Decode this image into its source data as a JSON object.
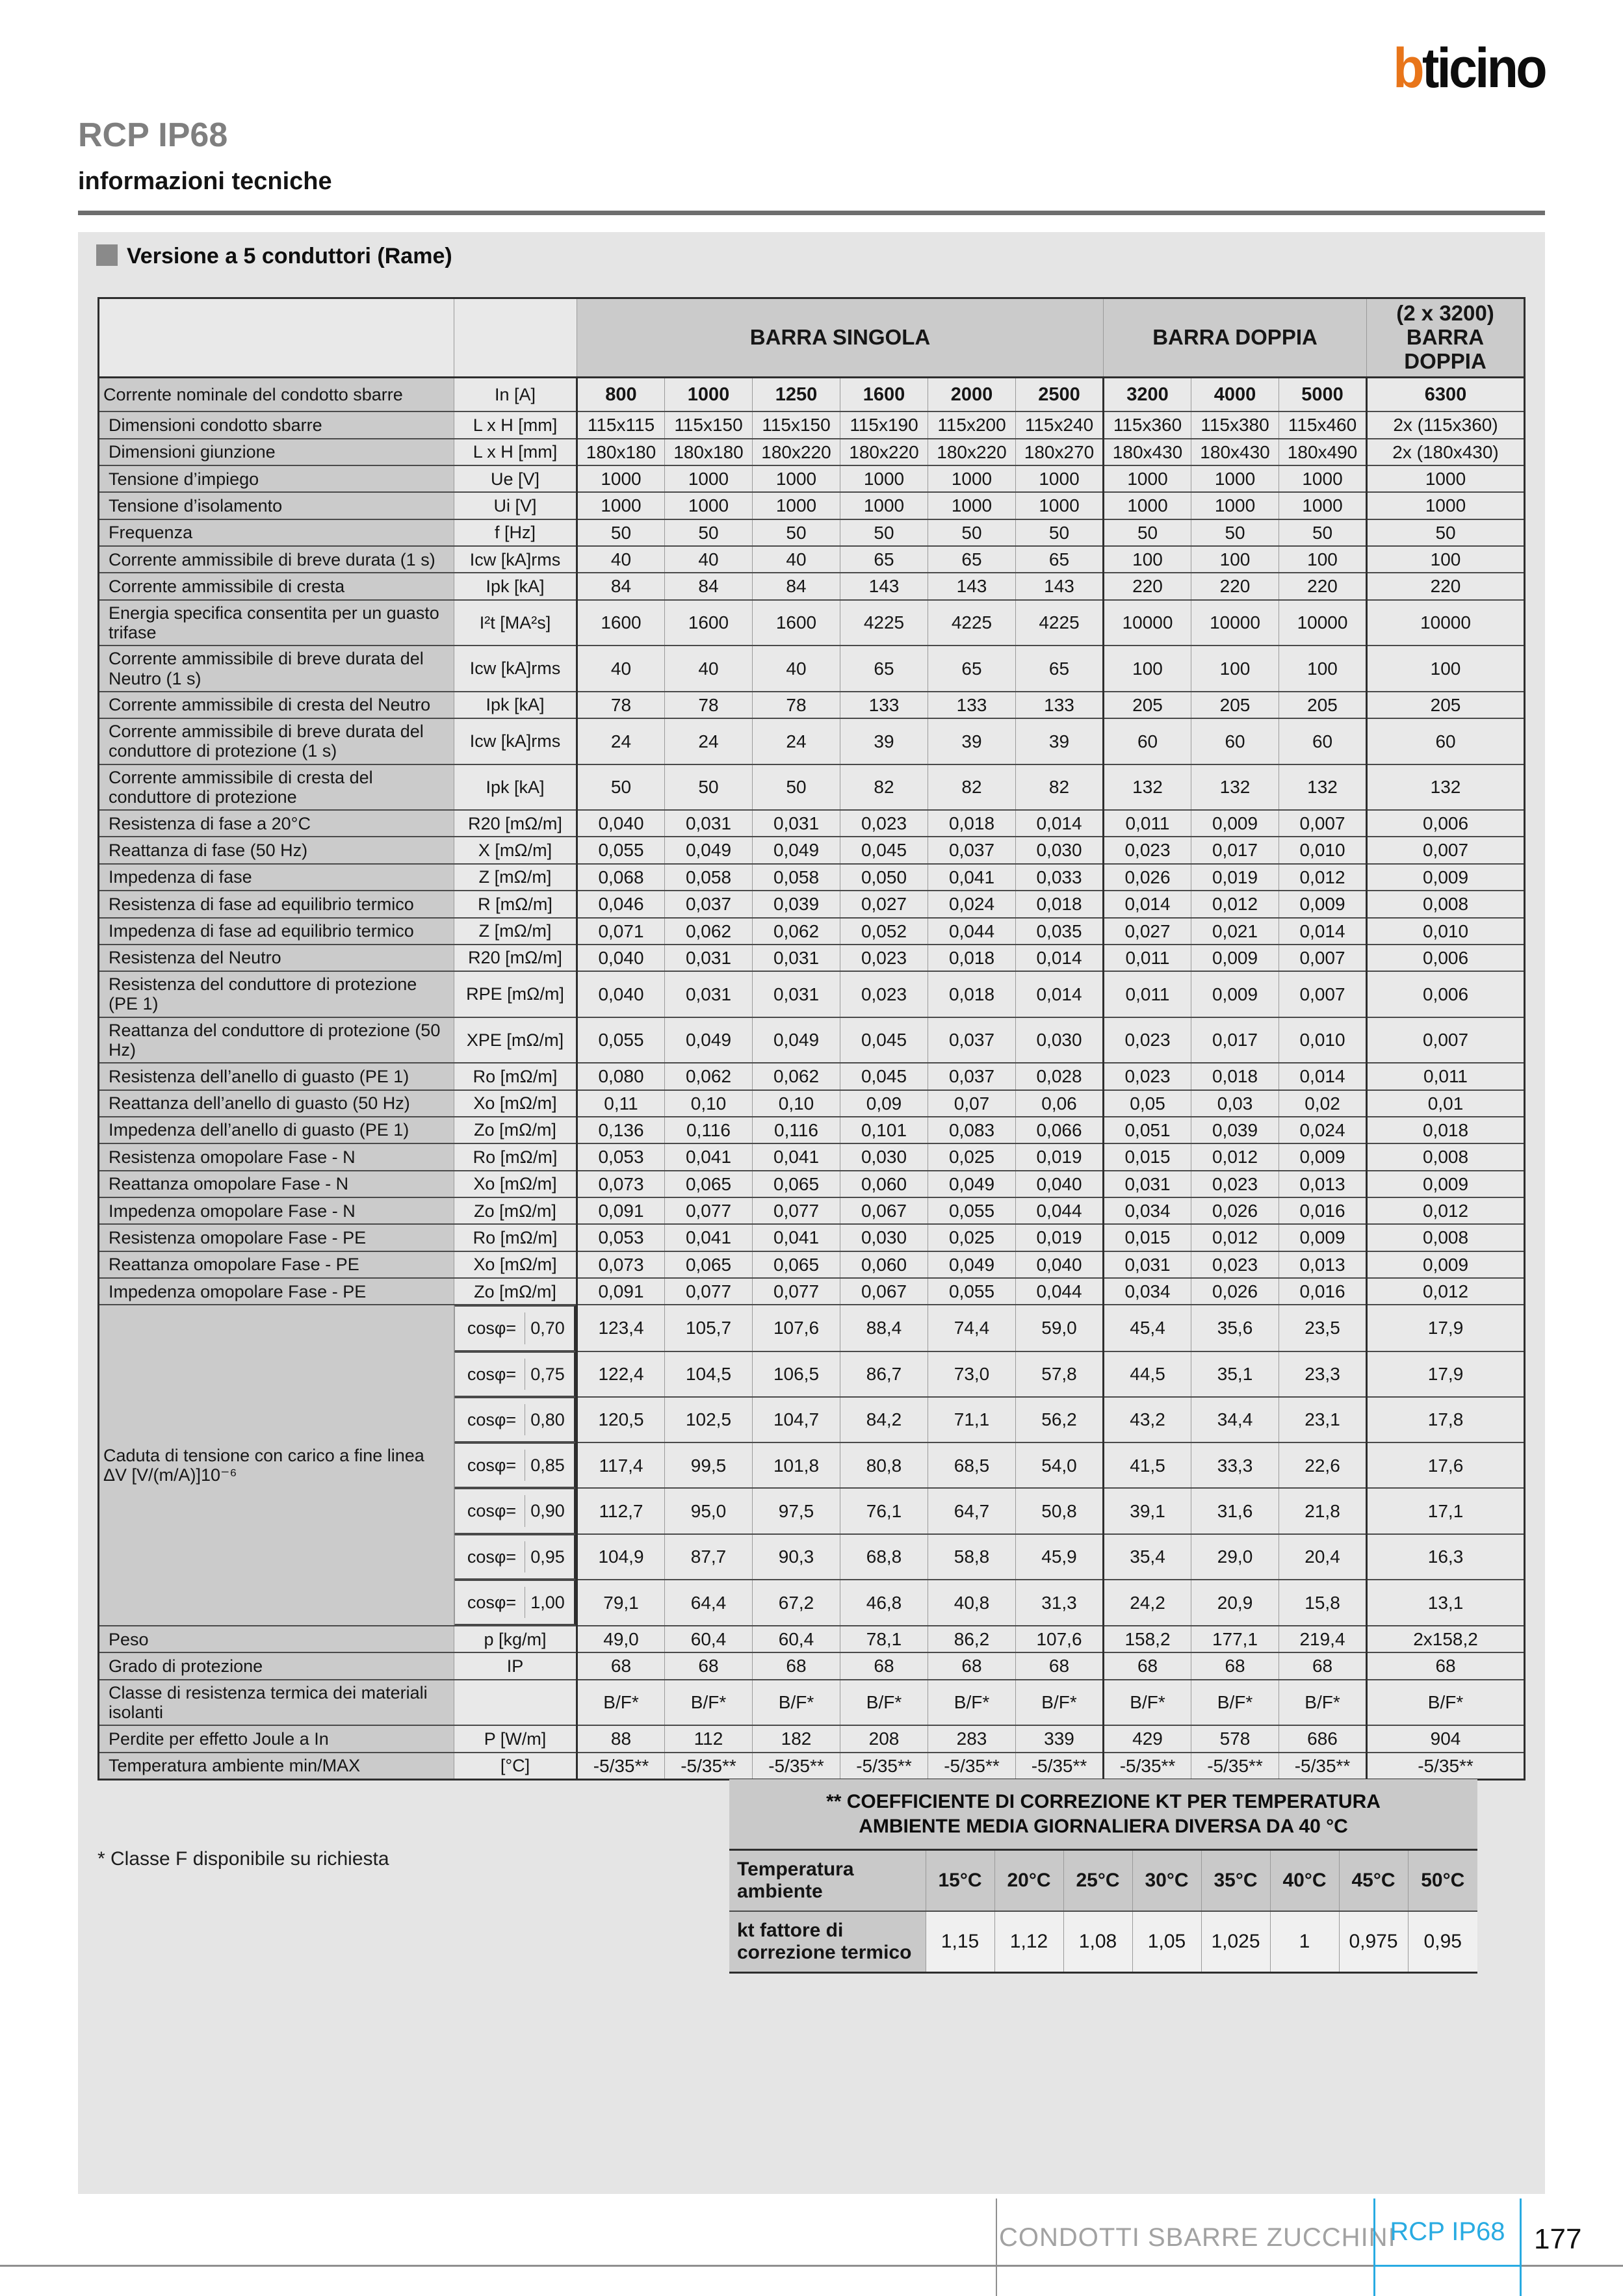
{
  "page": {
    "logo_b": "b",
    "logo_rest": "ticino",
    "title": "RCP IP68",
    "subtitle": "informazioni tecniche",
    "colors": {
      "orange": "#e8751a",
      "blue": "#29abe2",
      "title_gray": "#7f7f7f"
    }
  },
  "section": {
    "title": "Versione a 5 conduttori (Rame)",
    "footnote": "* Classe F disponibile su richiesta"
  },
  "main_table": {
    "cos_label": "cosφ=",
    "group_headers": [
      {
        "label": "",
        "span": 1
      },
      {
        "label": "",
        "span": 1
      },
      {
        "label": "BARRA SINGOLA",
        "span": 6
      },
      {
        "label": "BARRA DOPPIA",
        "span": 3
      },
      {
        "label": "(2 x 3200)\nBARRA DOPPIA",
        "span": 1
      }
    ],
    "rows": [
      {
        "label": "Corrente nominale del condotto sbarre",
        "unit": "In [A]",
        "bold": true,
        "values": [
          "800",
          "1000",
          "1250",
          "1600",
          "2000",
          "2500",
          "3200",
          "4000",
          "5000",
          "6300"
        ]
      },
      {
        "label": "Dimensioni condotto sbarre",
        "unit": "L x H [mm]",
        "values": [
          "115x115",
          "115x150",
          "115x150",
          "115x190",
          "115x200",
          "115x240",
          "115x360",
          "115x380",
          "115x460",
          "2x (115x360)"
        ]
      },
      {
        "label": "Dimensioni giunzione",
        "unit": "L x H [mm]",
        "values": [
          "180x180",
          "180x180",
          "180x220",
          "180x220",
          "180x220",
          "180x270",
          "180x430",
          "180x430",
          "180x490",
          "2x (180x430)"
        ]
      },
      {
        "label": "Tensione d’impiego",
        "unit": "Ue [V]",
        "values": [
          "1000",
          "1000",
          "1000",
          "1000",
          "1000",
          "1000",
          "1000",
          "1000",
          "1000",
          "1000"
        ]
      },
      {
        "label": "Tensione d’isolamento",
        "unit": "Ui [V]",
        "values": [
          "1000",
          "1000",
          "1000",
          "1000",
          "1000",
          "1000",
          "1000",
          "1000",
          "1000",
          "1000"
        ]
      },
      {
        "label": "Frequenza",
        "unit": "f [Hz]",
        "values": [
          "50",
          "50",
          "50",
          "50",
          "50",
          "50",
          "50",
          "50",
          "50",
          "50"
        ]
      },
      {
        "label": "Corrente ammissibile di breve durata (1 s)",
        "unit": "Icw [kA]rms",
        "values": [
          "40",
          "40",
          "40",
          "65",
          "65",
          "65",
          "100",
          "100",
          "100",
          "100"
        ]
      },
      {
        "label": "Corrente ammissibile di cresta",
        "unit": "Ipk [kA]",
        "values": [
          "84",
          "84",
          "84",
          "143",
          "143",
          "143",
          "220",
          "220",
          "220",
          "220"
        ]
      },
      {
        "label": "Energia specifica consentita per un guasto trifase",
        "unit": "I²t [MA²s]",
        "values": [
          "1600",
          "1600",
          "1600",
          "4225",
          "4225",
          "4225",
          "10000",
          "10000",
          "10000",
          "10000"
        ]
      },
      {
        "label": "Corrente ammissibile di breve durata del Neutro (1 s)",
        "unit": "Icw [kA]rms",
        "values": [
          "40",
          "40",
          "40",
          "65",
          "65",
          "65",
          "100",
          "100",
          "100",
          "100"
        ]
      },
      {
        "label": "Corrente ammissibile di cresta del Neutro",
        "unit": "Ipk [kA]",
        "values": [
          "78",
          "78",
          "78",
          "133",
          "133",
          "133",
          "205",
          "205",
          "205",
          "205"
        ]
      },
      {
        "label": "Corrente ammissibile di breve durata del conduttore di protezione (1 s)",
        "unit": "Icw [kA]rms",
        "values": [
          "24",
          "24",
          "24",
          "39",
          "39",
          "39",
          "60",
          "60",
          "60",
          "60"
        ]
      },
      {
        "label": "Corrente ammissibile di cresta del conduttore di protezione",
        "unit": "Ipk [kA]",
        "values": [
          "50",
          "50",
          "50",
          "82",
          "82",
          "82",
          "132",
          "132",
          "132",
          "132"
        ]
      },
      {
        "label": "Resistenza di fase a 20°C",
        "unit": "R20 [mΩ/m]",
        "values": [
          "0,040",
          "0,031",
          "0,031",
          "0,023",
          "0,018",
          "0,014",
          "0,011",
          "0,009",
          "0,007",
          "0,006"
        ]
      },
      {
        "label": "Reattanza di fase (50 Hz)",
        "unit": "X [mΩ/m]",
        "values": [
          "0,055",
          "0,049",
          "0,049",
          "0,045",
          "0,037",
          "0,030",
          "0,023",
          "0,017",
          "0,010",
          "0,007"
        ]
      },
      {
        "label": "Impedenza di fase",
        "unit": "Z [mΩ/m]",
        "values": [
          "0,068",
          "0,058",
          "0,058",
          "0,050",
          "0,041",
          "0,033",
          "0,026",
          "0,019",
          "0,012",
          "0,009"
        ]
      },
      {
        "label": "Resistenza di fase ad equilibrio termico",
        "unit": "R [mΩ/m]",
        "values": [
          "0,046",
          "0,037",
          "0,039",
          "0,027",
          "0,024",
          "0,018",
          "0,014",
          "0,012",
          "0,009",
          "0,008"
        ]
      },
      {
        "label": "Impedenza di fase ad equilibrio termico",
        "unit": "Z [mΩ/m]",
        "values": [
          "0,071",
          "0,062",
          "0,062",
          "0,052",
          "0,044",
          "0,035",
          "0,027",
          "0,021",
          "0,014",
          "0,010"
        ]
      },
      {
        "label": "Resistenza del Neutro",
        "unit": "R20 [mΩ/m]",
        "values": [
          "0,040",
          "0,031",
          "0,031",
          "0,023",
          "0,018",
          "0,014",
          "0,011",
          "0,009",
          "0,007",
          "0,006"
        ]
      },
      {
        "label": "Resistenza del conduttore di protezione (PE 1)",
        "unit": "RPE [mΩ/m]",
        "values": [
          "0,040",
          "0,031",
          "0,031",
          "0,023",
          "0,018",
          "0,014",
          "0,011",
          "0,009",
          "0,007",
          "0,006"
        ]
      },
      {
        "label": "Reattanza del conduttore di protezione (50 Hz)",
        "unit": "XPE [mΩ/m]",
        "values": [
          "0,055",
          "0,049",
          "0,049",
          "0,045",
          "0,037",
          "0,030",
          "0,023",
          "0,017",
          "0,010",
          "0,007"
        ]
      },
      {
        "label": "Resistenza dell’anello di guasto (PE 1)",
        "unit": "Ro [mΩ/m]",
        "values": [
          "0,080",
          "0,062",
          "0,062",
          "0,045",
          "0,037",
          "0,028",
          "0,023",
          "0,018",
          "0,014",
          "0,011"
        ]
      },
      {
        "label": "Reattanza dell’anello di guasto (50 Hz)",
        "unit": "Xo [mΩ/m]",
        "values": [
          "0,11",
          "0,10",
          "0,10",
          "0,09",
          "0,07",
          "0,06",
          "0,05",
          "0,03",
          "0,02",
          "0,01"
        ]
      },
      {
        "label": "Impedenza dell’anello di guasto (PE 1)",
        "unit": "Zo [mΩ/m]",
        "values": [
          "0,136",
          "0,116",
          "0,116",
          "0,101",
          "0,083",
          "0,066",
          "0,051",
          "0,039",
          "0,024",
          "0,018"
        ]
      },
      {
        "label": "Resistenza omopolare Fase - N",
        "unit": "Ro [mΩ/m]",
        "values": [
          "0,053",
          "0,041",
          "0,041",
          "0,030",
          "0,025",
          "0,019",
          "0,015",
          "0,012",
          "0,009",
          "0,008"
        ]
      },
      {
        "label": "Reattanza omopolare Fase - N",
        "unit": "Xo [mΩ/m]",
        "values": [
          "0,073",
          "0,065",
          "0,065",
          "0,060",
          "0,049",
          "0,040",
          "0,031",
          "0,023",
          "0,013",
          "0,009"
        ]
      },
      {
        "label": "Impedenza omopolare Fase - N",
        "unit": "Zo [mΩ/m]",
        "values": [
          "0,091",
          "0,077",
          "0,077",
          "0,067",
          "0,055",
          "0,044",
          "0,034",
          "0,026",
          "0,016",
          "0,012"
        ]
      },
      {
        "label": "Resistenza omopolare Fase - PE",
        "unit": "Ro [mΩ/m]",
        "values": [
          "0,053",
          "0,041",
          "0,041",
          "0,030",
          "0,025",
          "0,019",
          "0,015",
          "0,012",
          "0,009",
          "0,008"
        ]
      },
      {
        "label": "Reattanza omopolare Fase - PE",
        "unit": "Xo [mΩ/m]",
        "values": [
          "0,073",
          "0,065",
          "0,065",
          "0,060",
          "0,049",
          "0,040",
          "0,031",
          "0,023",
          "0,013",
          "0,009"
        ]
      },
      {
        "label": "Impedenza omopolare Fase - PE",
        "unit": "Zo [mΩ/m]",
        "values": [
          "0,091",
          "0,077",
          "0,077",
          "0,067",
          "0,055",
          "0,044",
          "0,034",
          "0,026",
          "0,016",
          "0,012"
        ]
      },
      {
        "label": "Caduta di tensione con carico a fine linea ΔV [V/(m/A)]10⁻⁶",
        "label_rowspan": 7,
        "cos": "0,70",
        "values": [
          "123,4",
          "105,7",
          "107,6",
          "88,4",
          "74,4",
          "59,0",
          "45,4",
          "35,6",
          "23,5",
          "17,9"
        ]
      },
      {
        "cos": "0,75",
        "values": [
          "122,4",
          "104,5",
          "106,5",
          "86,7",
          "73,0",
          "57,8",
          "44,5",
          "35,1",
          "23,3",
          "17,9"
        ]
      },
      {
        "cos": "0,80",
        "values": [
          "120,5",
          "102,5",
          "104,7",
          "84,2",
          "71,1",
          "56,2",
          "43,2",
          "34,4",
          "23,1",
          "17,8"
        ]
      },
      {
        "cos": "0,85",
        "values": [
          "117,4",
          "99,5",
          "101,8",
          "80,8",
          "68,5",
          "54,0",
          "41,5",
          "33,3",
          "22,6",
          "17,6"
        ]
      },
      {
        "cos": "0,90",
        "values": [
          "112,7",
          "95,0",
          "97,5",
          "76,1",
          "64,7",
          "50,8",
          "39,1",
          "31,6",
          "21,8",
          "17,1"
        ]
      },
      {
        "cos": "0,95",
        "values": [
          "104,9",
          "87,7",
          "90,3",
          "68,8",
          "58,8",
          "45,9",
          "35,4",
          "29,0",
          "20,4",
          "16,3"
        ]
      },
      {
        "cos": "1,00",
        "values": [
          "79,1",
          "64,4",
          "67,2",
          "46,8",
          "40,8",
          "31,3",
          "24,2",
          "20,9",
          "15,8",
          "13,1"
        ]
      },
      {
        "label": "Peso",
        "unit": "p [kg/m]",
        "values": [
          "49,0",
          "60,4",
          "60,4",
          "78,1",
          "86,2",
          "107,6",
          "158,2",
          "177,1",
          "219,4",
          "2x158,2"
        ]
      },
      {
        "label": "Grado di protezione",
        "unit": "IP",
        "values": [
          "68",
          "68",
          "68",
          "68",
          "68",
          "68",
          "68",
          "68",
          "68",
          "68"
        ]
      },
      {
        "label": "Classe di resistenza termica dei materiali isolanti",
        "unit": "",
        "values": [
          "B/F*",
          "B/F*",
          "B/F*",
          "B/F*",
          "B/F*",
          "B/F*",
          "B/F*",
          "B/F*",
          "B/F*",
          "B/F*"
        ]
      },
      {
        "label": "Perdite per effetto Joule a In",
        "unit": "P [W/m]",
        "values": [
          "88",
          "112",
          "182",
          "208",
          "283",
          "339",
          "429",
          "578",
          "686",
          "904"
        ]
      },
      {
        "label": "Temperatura ambiente min/MAX",
        "unit": "[°C]",
        "values": [
          "-5/35**",
          "-5/35**",
          "-5/35**",
          "-5/35**",
          "-5/35**",
          "-5/35**",
          "-5/35**",
          "-5/35**",
          "-5/35**",
          "-5/35**"
        ]
      }
    ]
  },
  "correction_table": {
    "title": "** COEFFICIENTE DI CORREZIONE KT PER TEMPERATURA\nAMBIENTE MEDIA GIORNALIERA DIVERSA DA 40 °C",
    "temp_label": "Temperatura ambiente",
    "kt_label": "kt fattore di correzione termico",
    "temperatures": [
      "15°C",
      "20°C",
      "25°C",
      "30°C",
      "35°C",
      "40°C",
      "45°C",
      "50°C"
    ],
    "factors": [
      "1,15",
      "1,12",
      "1,08",
      "1,05",
      "1,025",
      "1",
      "0,975",
      "0,95"
    ]
  },
  "footer": {
    "left": "CONDOTTI SBARRE ZUCCHINI",
    "tab": "RCP IP68",
    "page_number": "177"
  }
}
